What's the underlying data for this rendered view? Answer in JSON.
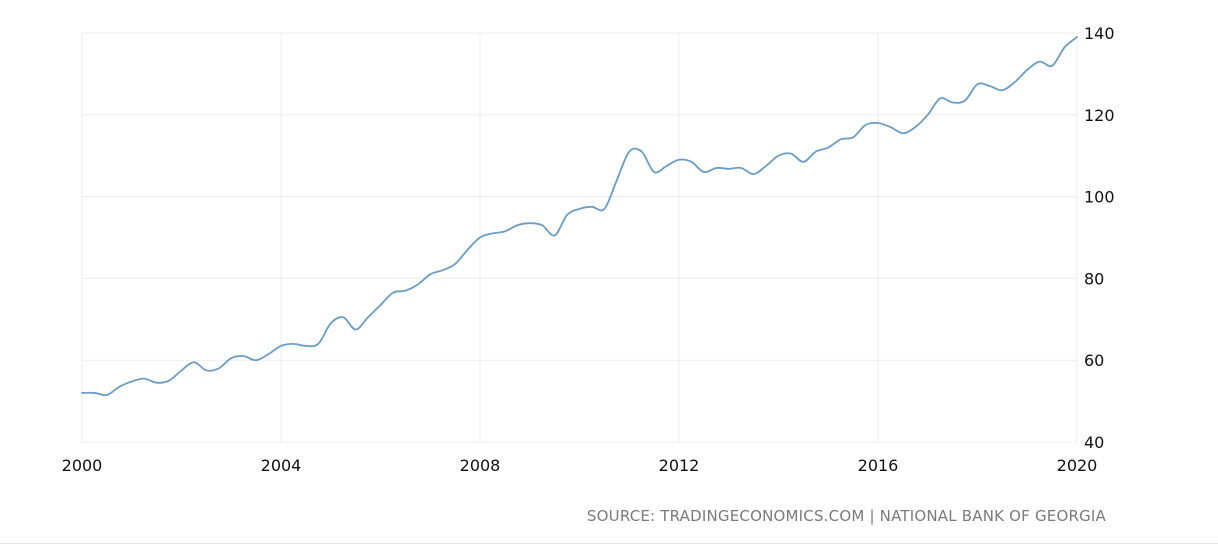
{
  "chart_data": {
    "type": "line",
    "title": "",
    "xlabel": "",
    "ylabel": "",
    "xlim": [
      2000,
      2020
    ],
    "ylim": [
      40,
      140
    ],
    "x_ticks": [
      2000,
      2004,
      2008,
      2012,
      2016,
      2020
    ],
    "x_tick_labels": [
      "2000",
      "2004",
      "2008",
      "2012",
      "2016",
      "2020"
    ],
    "y_ticks": [
      40,
      60,
      80,
      100,
      120,
      140
    ],
    "y_tick_labels": [
      "40",
      "60",
      "80",
      "100",
      "120",
      "140"
    ],
    "y_axis_side": "right",
    "grid": true,
    "legend": "none",
    "line_color": "#6a9cc6",
    "series": [
      {
        "x": [
          2000.0,
          2000.25,
          2000.5,
          2000.75,
          2001.0,
          2001.25,
          2001.5,
          2001.75,
          2002.0,
          2002.25,
          2002.5,
          2002.75,
          2003.0,
          2003.25,
          2003.5,
          2003.75,
          2004.0,
          2004.25,
          2004.5,
          2004.75,
          2005.0,
          2005.25,
          2005.5,
          2005.75,
          2006.0,
          2006.25,
          2006.5,
          2006.75,
          2007.0,
          2007.25,
          2007.5,
          2007.75,
          2008.0,
          2008.25,
          2008.5,
          2008.75,
          2009.0,
          2009.25,
          2009.5,
          2009.75,
          2010.0,
          2010.25,
          2010.5,
          2010.75,
          2011.0,
          2011.25,
          2011.5,
          2011.75,
          2012.0,
          2012.25,
          2012.5,
          2012.75,
          2013.0,
          2013.25,
          2013.5,
          2013.75,
          2014.0,
          2014.25,
          2014.5,
          2014.75,
          2015.0,
          2015.25,
          2015.5,
          2015.75,
          2016.0,
          2016.25,
          2016.5,
          2016.75,
          2017.0,
          2017.25,
          2017.5,
          2017.75,
          2018.0,
          2018.25,
          2018.5,
          2018.75,
          2019.0,
          2019.25,
          2019.5,
          2019.75,
          2020.0
        ],
        "values": [
          52.0,
          52.0,
          51.5,
          53.5,
          54.8,
          55.5,
          54.5,
          55.0,
          57.5,
          59.5,
          57.5,
          58.0,
          60.5,
          61.0,
          60.0,
          61.5,
          63.5,
          64.0,
          63.5,
          64.0,
          69.0,
          70.5,
          67.5,
          70.5,
          73.5,
          76.5,
          77.0,
          78.5,
          81.0,
          82.0,
          83.5,
          87.0,
          90.0,
          91.0,
          91.5,
          93.0,
          93.5,
          93.0,
          90.5,
          95.5,
          97.0,
          97.5,
          97.0,
          104.0,
          111.0,
          111.0,
          106.0,
          107.5,
          109.0,
          108.5,
          106.0,
          107.0,
          106.8,
          107.0,
          105.5,
          107.5,
          110.0,
          110.5,
          108.5,
          111.0,
          112.0,
          114.0,
          114.5,
          117.5,
          118.0,
          117.0,
          115.5,
          117.0,
          120.0,
          124.0,
          123.0,
          123.5,
          127.5,
          127.0,
          126.0,
          128.0,
          131.0,
          133.0,
          132.0,
          136.5,
          139.0
        ]
      }
    ]
  },
  "footer": {
    "source_text": "SOURCE: TRADINGECONOMICS.COM | NATIONAL BANK OF GEORGIA"
  }
}
